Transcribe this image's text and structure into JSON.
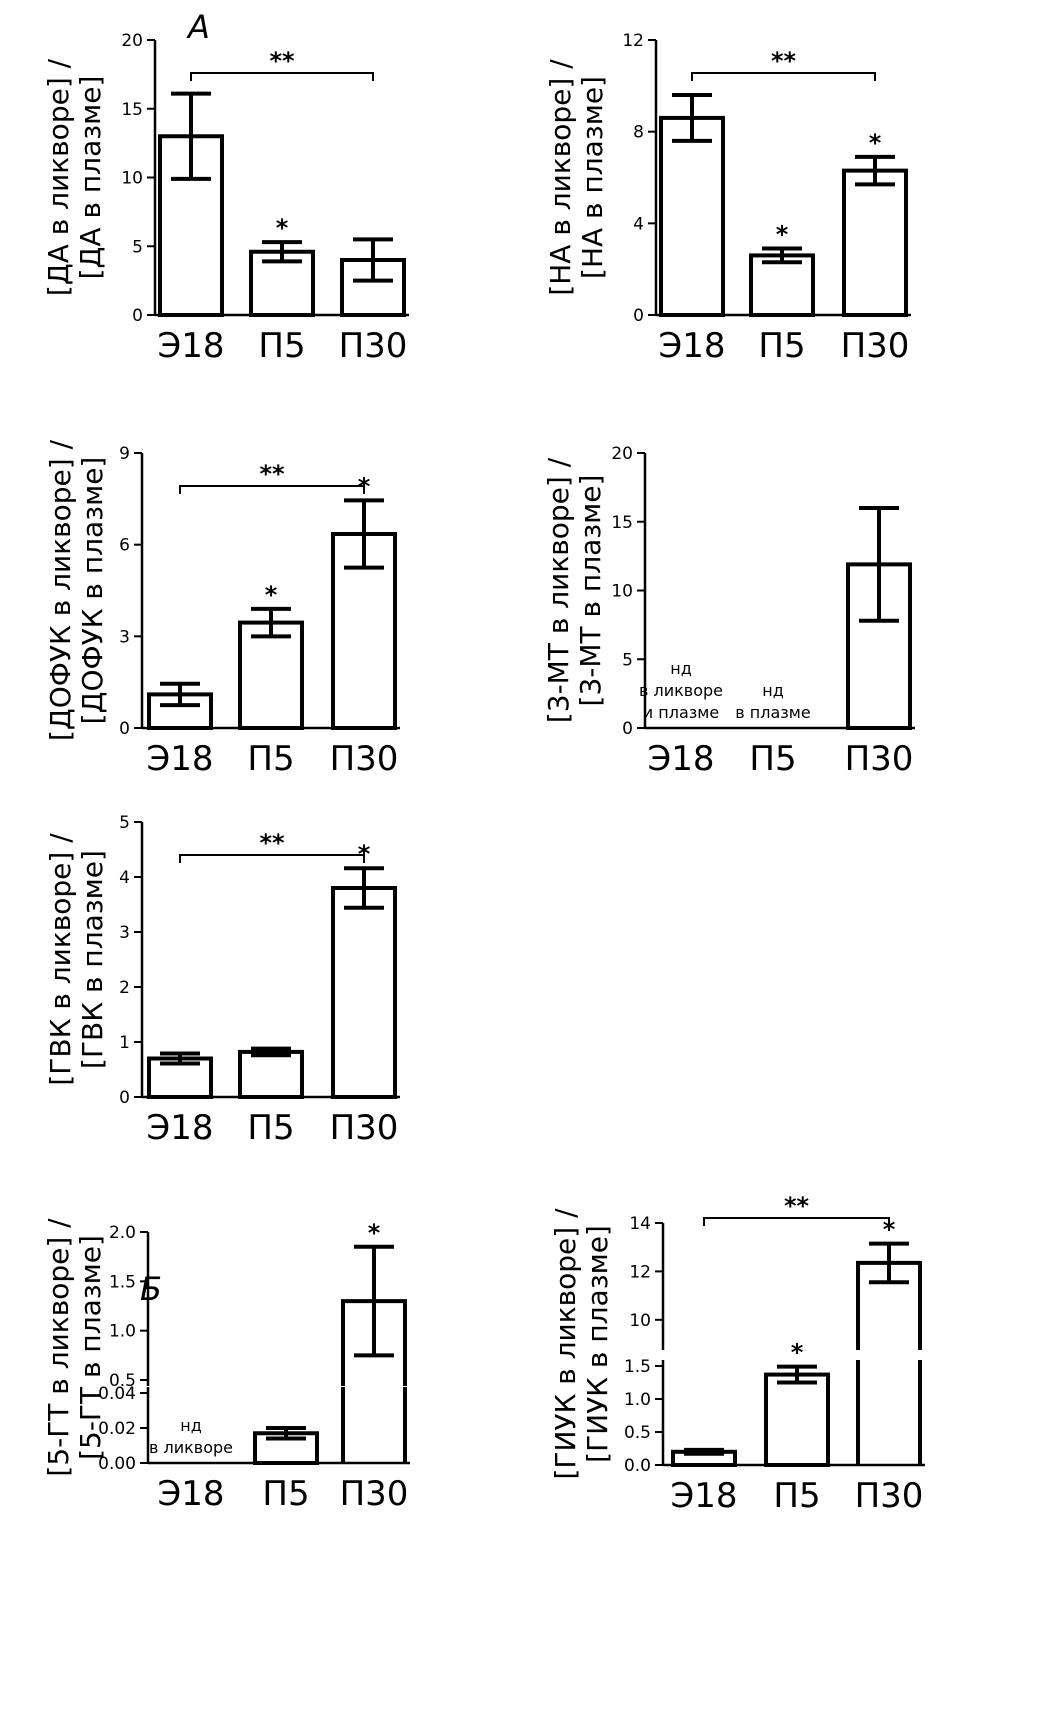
{
  "panel_labels": [
    "А",
    "Б"
  ],
  "chart_data": [
    {
      "id": "da",
      "type": "bar",
      "ylabel_lines": [
        "[ДА в ликворе] /",
        "[ДА в плазме]"
      ],
      "categories": [
        "Э18",
        "П5",
        "П30"
      ],
      "values": [
        13.0,
        4.6,
        4.0
      ],
      "errors": [
        3.1,
        0.7,
        1.5
      ],
      "ylim": [
        0,
        20
      ],
      "yticks": [
        0,
        5,
        10,
        15,
        20
      ],
      "stars": [
        "",
        "*",
        ""
      ],
      "bracket": {
        "from": 0,
        "to": 2,
        "label": "**"
      },
      "notes": []
    },
    {
      "id": "na",
      "type": "bar",
      "ylabel_lines": [
        "[НА в ликворе] /",
        "[НА в плазме]"
      ],
      "categories": [
        "Э18",
        "П5",
        "П30"
      ],
      "values": [
        8.6,
        2.6,
        6.3
      ],
      "errors": [
        1.0,
        0.3,
        0.6
      ],
      "ylim": [
        0,
        12
      ],
      "yticks": [
        0,
        4,
        8,
        12
      ],
      "stars": [
        "",
        "*",
        "*"
      ],
      "bracket": {
        "from": 0,
        "to": 2,
        "label": "**"
      },
      "notes": []
    },
    {
      "id": "dofuk",
      "type": "bar",
      "ylabel_lines": [
        "[ДОФУК в ликворе] /",
        "[ДОФУК в плазме]"
      ],
      "categories": [
        "Э18",
        "П5",
        "П30"
      ],
      "values": [
        1.1,
        3.45,
        6.35
      ],
      "errors": [
        0.35,
        0.45,
        1.1
      ],
      "ylim": [
        0,
        9
      ],
      "yticks": [
        0,
        3,
        6,
        9
      ],
      "stars": [
        "",
        "*",
        "*"
      ],
      "bracket": {
        "from": 0,
        "to": 2,
        "label": "**"
      },
      "notes": []
    },
    {
      "id": "mt3",
      "type": "bar",
      "ylabel_lines": [
        "[3-МТ в ликворе] /",
        "[3-МТ в плазме]"
      ],
      "categories": [
        "Э18",
        "П5",
        "П30"
      ],
      "values": [
        null,
        null,
        11.9
      ],
      "errors": [
        null,
        null,
        4.1
      ],
      "ylim": [
        0,
        20
      ],
      "yticks": [
        0,
        5,
        10,
        15,
        20
      ],
      "stars": [
        "",
        "",
        ""
      ],
      "bracket": null,
      "notes": [
        {
          "bar": 0,
          "lines": [
            "нд",
            "в ликворе",
            "и плазме"
          ]
        },
        {
          "bar": 1,
          "lines": [
            "нд",
            "в плазме"
          ]
        }
      ]
    },
    {
      "id": "gvk",
      "type": "bar",
      "ylabel_lines": [
        "[ГВК в ликворе] /",
        "[ГВК в плазме]"
      ],
      "categories": [
        "Э18",
        "П5",
        "П30"
      ],
      "values": [
        0.7,
        0.82,
        3.8
      ],
      "errors": [
        0.09,
        0.06,
        0.36
      ],
      "ylim": [
        0,
        5
      ],
      "yticks": [
        0,
        1,
        2,
        3,
        4,
        5
      ],
      "stars": [
        "",
        "",
        "*"
      ],
      "bracket": {
        "from": 0,
        "to": 2,
        "label": "**"
      },
      "notes": []
    },
    {
      "id": "5gt",
      "type": "bar",
      "axis_break": true,
      "ylabel_lines": [
        "[5-ГТ в ликворе] /",
        "[5-ГТ в плазме]"
      ],
      "categories": [
        "Э18",
        "П5",
        "П30"
      ],
      "values": [
        null,
        0.017,
        1.3
      ],
      "errors": [
        null,
        0.003,
        0.55
      ],
      "lower_ylim": [
        0,
        0.04
      ],
      "lower_yticks": [
        "0.00",
        "0.02",
        "0.04"
      ],
      "upper_ylim": [
        0.5,
        2.0
      ],
      "upper_yticks": [
        "0.5",
        "1.0",
        "1.5",
        "2.0"
      ],
      "stars": [
        "",
        "",
        "*"
      ],
      "bracket": null,
      "notes": [
        {
          "bar": 0,
          "lines": [
            "нд",
            "в ликворе"
          ]
        }
      ]
    },
    {
      "id": "giuk",
      "type": "bar",
      "axis_break": true,
      "ylabel_lines": [
        "[ГИУК в ликворе] /",
        "[ГИУК в плазме]"
      ],
      "categories": [
        "Э18",
        "П5",
        "П30"
      ],
      "values": [
        0.2,
        1.37,
        12.35
      ],
      "errors": [
        0.03,
        0.12,
        0.8
      ],
      "lower_ylim": [
        0,
        1.5
      ],
      "lower_yticks": [
        "0.0",
        "0.5",
        "1.0",
        "1.5"
      ],
      "upper_ylim": [
        9,
        14
      ],
      "upper_yticks": [
        "10",
        "12",
        "14"
      ],
      "stars": [
        "",
        "*",
        "*"
      ],
      "bracket": {
        "from": 0,
        "to": 2,
        "label": "**"
      },
      "notes": []
    }
  ]
}
